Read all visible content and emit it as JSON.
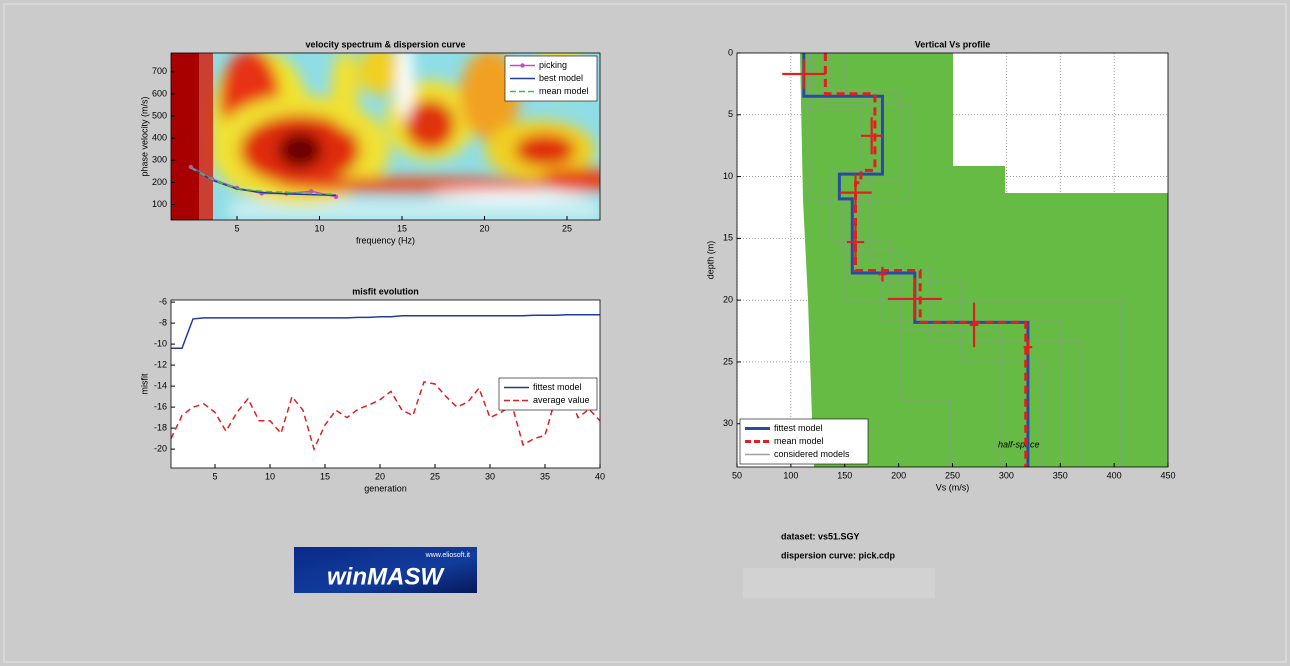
{
  "chart_data": [
    {
      "type": "line",
      "title": "velocity spectrum & dispersion curve",
      "xlabel": "frequency (Hz)",
      "ylabel": "phase velocity (m/s)",
      "xlim": [
        1,
        27
      ],
      "xticks": [
        5,
        10,
        15,
        20,
        25
      ],
      "ylim": [
        30,
        785
      ],
      "yticks": [
        100,
        200,
        300,
        400,
        500,
        600,
        700
      ],
      "grid": false,
      "legend": "upper right",
      "series": [
        {
          "name": "picking",
          "color": "#c050c0",
          "marker": true,
          "x": [
            2.2,
            3.5,
            5,
            6.5,
            8,
            9.5,
            11
          ],
          "values": [
            270,
            215,
            175,
            150,
            150,
            160,
            135
          ]
        },
        {
          "name": "best model",
          "color": "#1f3c9a",
          "x": [
            2.2,
            3.5,
            5,
            6.5,
            8,
            9.5,
            11
          ],
          "values": [
            265,
            210,
            170,
            155,
            148,
            145,
            142
          ]
        },
        {
          "name": "mean model",
          "color": "#40c040",
          "dash": true,
          "x": [
            2.2,
            3.5,
            5,
            6.5,
            8,
            9.5,
            11
          ],
          "values": [
            265,
            212,
            172,
            160,
            155,
            150,
            146
          ]
        }
      ]
    },
    {
      "type": "line",
      "title": "misfit evolution",
      "xlabel": "generation",
      "ylabel": "misfit",
      "xlim": [
        1,
        40
      ],
      "xticks": [
        5,
        10,
        15,
        20,
        25,
        30,
        35,
        40
      ],
      "ylim": [
        -21.8,
        -5.8
      ],
      "yticks": [
        -6,
        -8,
        -10,
        -12,
        -14,
        -16,
        -18,
        -20
      ],
      "grid": false,
      "legend": "center right",
      "series": [
        {
          "name": "fittest model",
          "color": "#1f3c9a",
          "x": [
            1,
            2,
            3,
            4,
            5,
            6,
            7,
            8,
            9,
            10,
            11,
            12,
            13,
            14,
            15,
            16,
            17,
            18,
            19,
            20,
            21,
            22,
            23,
            24,
            25,
            26,
            27,
            28,
            29,
            30,
            31,
            32,
            33,
            34,
            35,
            36,
            37,
            38,
            39,
            40
          ],
          "values": [
            -10.4,
            -10.4,
            -7.6,
            -7.5,
            -7.5,
            -7.5,
            -7.5,
            -7.5,
            -7.5,
            -7.5,
            -7.5,
            -7.5,
            -7.5,
            -7.5,
            -7.5,
            -7.5,
            -7.5,
            -7.45,
            -7.45,
            -7.4,
            -7.4,
            -7.3,
            -7.3,
            -7.3,
            -7.3,
            -7.3,
            -7.3,
            -7.3,
            -7.3,
            -7.3,
            -7.3,
            -7.3,
            -7.3,
            -7.25,
            -7.25,
            -7.25,
            -7.2,
            -7.2,
            -7.2,
            -7.2
          ]
        },
        {
          "name": "average value",
          "color": "#e02020",
          "dash": true,
          "x": [
            1,
            2,
            3,
            4,
            5,
            6,
            7,
            8,
            9,
            10,
            11,
            12,
            13,
            14,
            15,
            16,
            17,
            18,
            19,
            20,
            21,
            22,
            23,
            24,
            25,
            26,
            27,
            28,
            29,
            30,
            31,
            32,
            33,
            34,
            35,
            36,
            37,
            38,
            39,
            40
          ],
          "values": [
            -19,
            -16.8,
            -16,
            -15.7,
            -16.5,
            -18.3,
            -16.5,
            -15.2,
            -17.3,
            -17.3,
            -18.5,
            -15,
            -16.3,
            -20,
            -17.7,
            -16.3,
            -17,
            -16.2,
            -15.8,
            -15.3,
            -14.5,
            -16.3,
            -16.8,
            -13.6,
            -13.8,
            -15,
            -16,
            -15.5,
            -14.2,
            -17,
            -16.5,
            -15.8,
            -19.6,
            -19,
            -18.7,
            -15,
            -14.2,
            -17,
            -16.2,
            -17.3
          ]
        }
      ]
    },
    {
      "type": "profile",
      "title": "Vertical Vs profile",
      "xlabel": "Vs (m/s)",
      "ylabel": "depth (m)",
      "annotation": "half-space",
      "xlim": [
        50,
        450
      ],
      "xticks": [
        50,
        100,
        150,
        200,
        250,
        300,
        350,
        400,
        450
      ],
      "ylim": [
        0,
        33.5
      ],
      "yticks": [
        0,
        5,
        10,
        15,
        20,
        25,
        30
      ],
      "yreverse": true,
      "grid": true,
      "legend": "lower left",
      "series": [
        {
          "name": "fittest model",
          "color": "#2a4aa8",
          "vs": [
            112,
            112,
            185,
            185,
            145,
            145,
            157,
            157,
            215,
            215,
            320,
            320
          ],
          "depth": [
            0,
            3.5,
            3.5,
            9.8,
            9.8,
            11.8,
            11.8,
            17.8,
            17.8,
            21.8,
            21.8,
            33.5
          ]
        },
        {
          "name": "mean model",
          "color": "#e02020",
          "dash": true,
          "vs": [
            132,
            132,
            178,
            178,
            165,
            165,
            160,
            160,
            220,
            220,
            318,
            318
          ],
          "depth": [
            0,
            3.3,
            3.3,
            9.5,
            9.5,
            10.5,
            10.5,
            17.6,
            17.6,
            21.8,
            21.8,
            33.5
          ]
        },
        {
          "name": "considered models",
          "color": "#a0a0a8"
        }
      ],
      "error_bars": [
        {
          "vs": 112,
          "depth": 1.7,
          "vs_err": 20,
          "depth_err": 1.2
        },
        {
          "vs": 175,
          "depth": 6.7,
          "vs_err": 10,
          "depth_err": 1.5
        },
        {
          "vs": 160,
          "depth": 11.3,
          "vs_err": 15,
          "depth_err": 1.5
        },
        {
          "vs": 160,
          "depth": 15.3,
          "vs_err": 8,
          "depth_err": 1.5
        },
        {
          "vs": 185,
          "depth": 17.9,
          "vs_err": 4,
          "depth_err": 0.6
        },
        {
          "vs": 215,
          "depth": 19.9,
          "vs_err": 25,
          "depth_err": 1.7
        },
        {
          "vs": 270,
          "depth": 22,
          "vs_err": 4,
          "depth_err": 1.8
        },
        {
          "vs": 320,
          "depth": 23.8,
          "vs_err": 4,
          "depth_err": 0.6
        }
      ]
    }
  ],
  "info": {
    "dataset": "dataset: vs51.SGY",
    "dispersion": "dispersion curve: pick.cdp"
  },
  "logo": {
    "text": "winMASW",
    "url": "www.eliosoft.it"
  }
}
